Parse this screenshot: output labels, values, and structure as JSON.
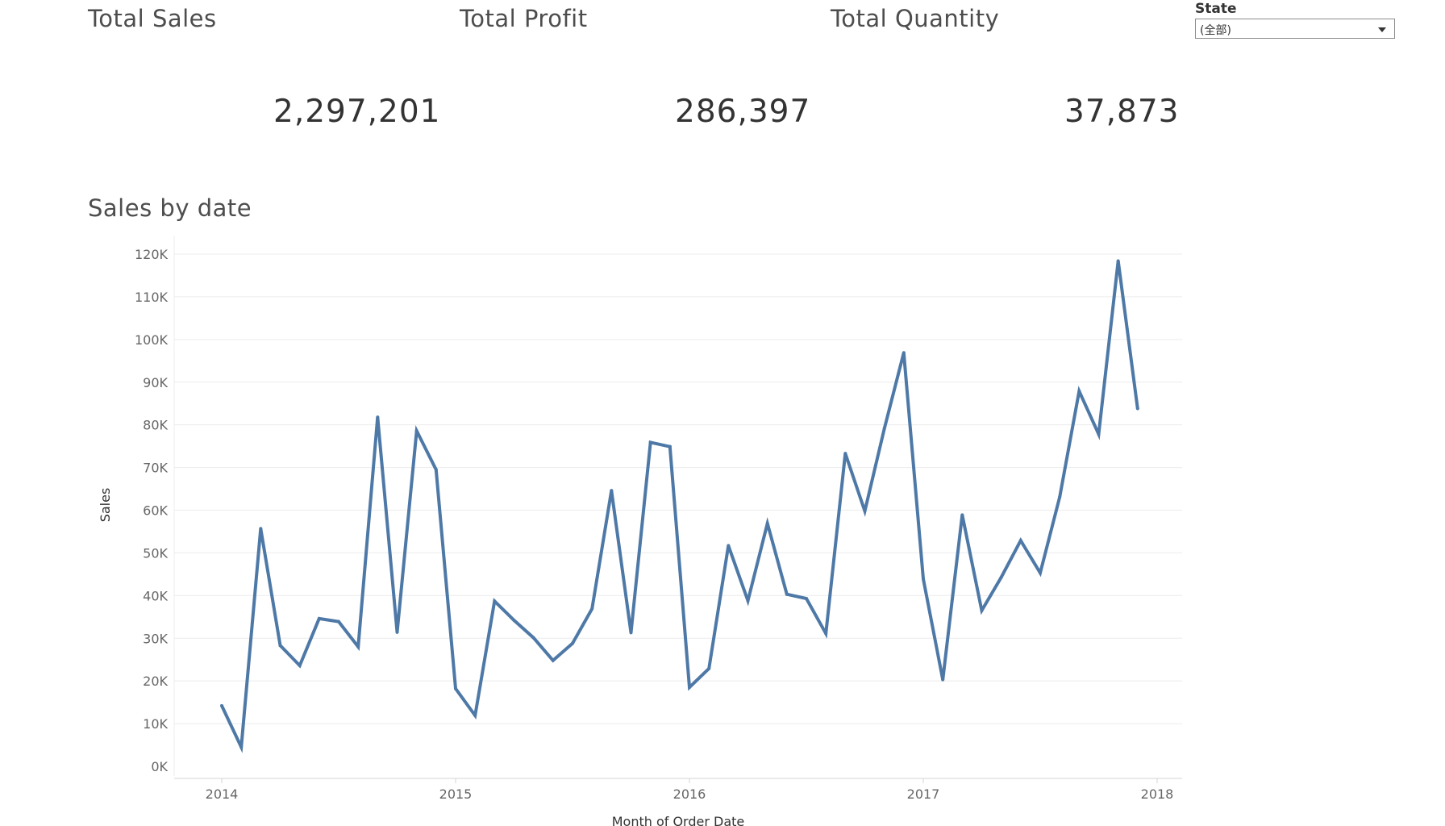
{
  "kpis": [
    {
      "title": "Total Sales",
      "value": "2,297,201"
    },
    {
      "title": "Total Profit",
      "value": "286,397"
    },
    {
      "title": "Total Quantity",
      "value": "37,873"
    }
  ],
  "filter": {
    "label": "State",
    "value": "(全部)"
  },
  "colors": {
    "line": "#4e79a7",
    "grid": "#ececec"
  },
  "chart_data": {
    "type": "line",
    "title": "Sales by date",
    "xlabel": "Month of Order Date",
    "ylabel": "Sales",
    "x_ticks": [
      "2014",
      "2015",
      "2016",
      "2017",
      "2018"
    ],
    "y_ticks": [
      "0K",
      "10K",
      "20K",
      "30K",
      "40K",
      "50K",
      "60K",
      "70K",
      "80K",
      "90K",
      "100K",
      "110K",
      "120K"
    ],
    "xlim": [
      "2014-01",
      "2018-01"
    ],
    "ylim": [
      0,
      120000
    ],
    "grid": true,
    "series": [
      {
        "x": [
          "2014-01",
          "2014-02",
          "2014-03",
          "2014-04",
          "2014-05",
          "2014-06",
          "2014-07",
          "2014-08",
          "2014-09",
          "2014-10",
          "2014-11",
          "2014-12",
          "2015-01",
          "2015-02",
          "2015-03",
          "2015-04",
          "2015-05",
          "2015-06",
          "2015-07",
          "2015-08",
          "2015-09",
          "2015-10",
          "2015-11",
          "2015-12",
          "2016-01",
          "2016-02",
          "2016-03",
          "2016-04",
          "2016-05",
          "2016-06",
          "2016-07",
          "2016-08",
          "2016-09",
          "2016-10",
          "2016-11",
          "2016-12",
          "2017-01",
          "2017-02",
          "2017-03",
          "2017-04",
          "2017-05",
          "2017-06",
          "2017-07",
          "2017-08",
          "2017-09",
          "2017-10",
          "2017-11",
          "2017-12"
        ],
        "values": [
          14200,
          4500,
          55700,
          28300,
          23600,
          34600,
          33900,
          28000,
          81800,
          31400,
          78600,
          69500,
          18200,
          11900,
          38700,
          34200,
          30100,
          24800,
          28800,
          36900,
          64600,
          31300,
          75900,
          74900,
          18500,
          22900,
          51700,
          38800,
          56900,
          40300,
          39300,
          31100,
          73300,
          59800,
          79100,
          96900,
          43900,
          20300,
          58900,
          36500,
          44300,
          52900,
          45300,
          63100,
          87900,
          77800,
          118400,
          83800
        ]
      }
    ]
  }
}
